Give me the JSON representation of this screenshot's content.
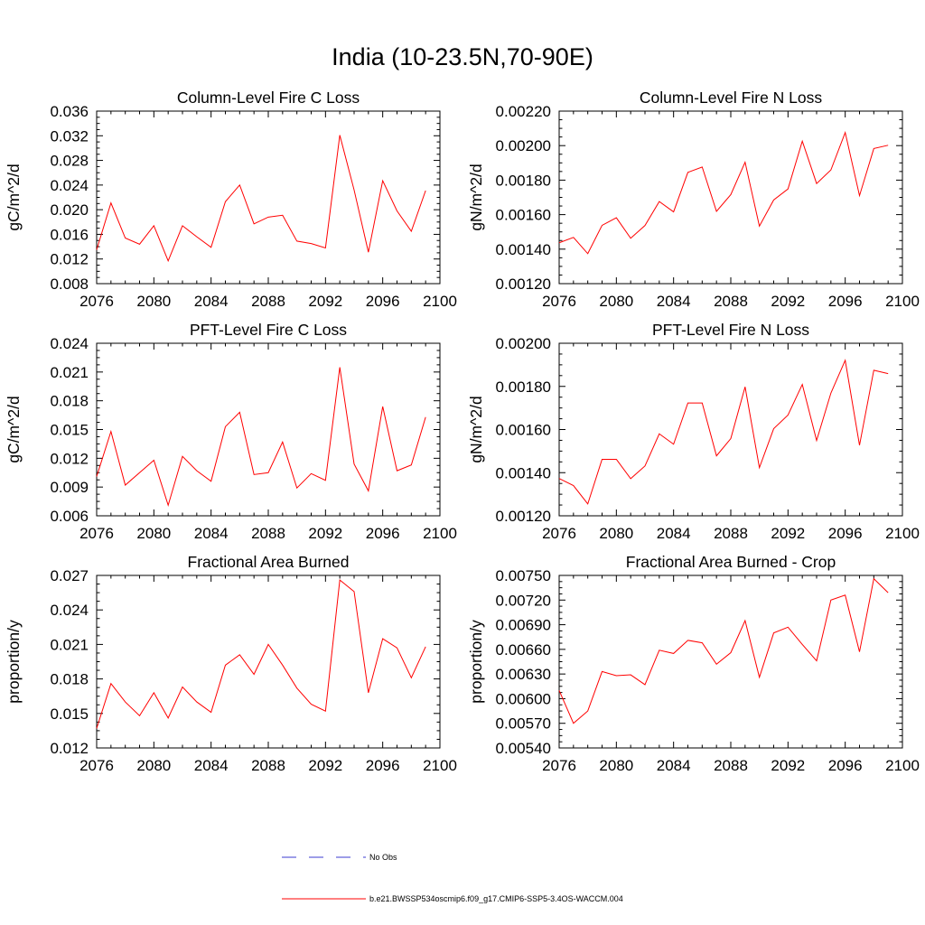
{
  "title": "India (10-23.5N,70-90E)",
  "legend": {
    "entries": [
      {
        "label": "No Obs",
        "color": "#3b3bd0",
        "style": "dashed"
      },
      {
        "label": "b.e21.BWSSP534oscmip6.f09_g17.CMIP6-SSP5-3.4OS-WACCM.004",
        "color": "#ff0000",
        "style": "solid"
      }
    ]
  },
  "chart_data": [
    {
      "type": "line",
      "title": "Column-Level Fire C Loss",
      "ylabel": "gC/m^2/d",
      "xlim": [
        2076,
        2100
      ],
      "ylim": [
        0.008,
        0.036
      ],
      "xticks": [
        "2076",
        "2080",
        "2084",
        "2088",
        "2092",
        "2096",
        "2100"
      ],
      "yticks": [
        "0.008",
        "0.012",
        "0.016",
        "0.020",
        "0.024",
        "0.028",
        "0.032",
        "0.036"
      ],
      "series": [
        {
          "color": "#ff0000",
          "x": [
            2076,
            2077,
            2078,
            2079,
            2080,
            2081,
            2082,
            2083,
            2084,
            2085,
            2086,
            2087,
            2088,
            2089,
            2090,
            2091,
            2092,
            2093,
            2094,
            2095,
            2096,
            2097,
            2098,
            2099
          ],
          "values": [
            0.0135,
            0.0211,
            0.0154,
            0.0144,
            0.0174,
            0.0117,
            0.0174,
            0.0156,
            0.0139,
            0.0213,
            0.024,
            0.0177,
            0.0188,
            0.0191,
            0.0149,
            0.0145,
            0.0138,
            0.0321,
            0.0232,
            0.0131,
            0.0247,
            0.0198,
            0.0165,
            0.0231
          ]
        }
      ]
    },
    {
      "type": "line",
      "title": "Column-Level Fire N Loss",
      "ylabel": "gN/m^2/d",
      "xlim": [
        2076,
        2100
      ],
      "ylim": [
        0.0012,
        0.0022
      ],
      "xticks": [
        "2076",
        "2080",
        "2084",
        "2088",
        "2092",
        "2096",
        "2100"
      ],
      "yticks": [
        "0.00120",
        "0.00140",
        "0.00160",
        "0.00180",
        "0.00200",
        "0.00220"
      ],
      "series": [
        {
          "color": "#ff0000",
          "x": [
            2076,
            2077,
            2078,
            2079,
            2080,
            2081,
            2082,
            2083,
            2084,
            2085,
            2086,
            2087,
            2088,
            2089,
            2090,
            2091,
            2092,
            2093,
            2094,
            2095,
            2096,
            2097,
            2098,
            2099
          ],
          "values": [
            0.001437,
            0.001468,
            0.001374,
            0.001538,
            0.001582,
            0.001463,
            0.001537,
            0.001676,
            0.001616,
            0.001845,
            0.001876,
            0.001619,
            0.001716,
            0.001904,
            0.001533,
            0.001685,
            0.001749,
            0.002026,
            0.00178,
            0.001859,
            0.002076,
            0.00171,
            0.001983,
            0.002002
          ]
        }
      ]
    },
    {
      "type": "line",
      "title": "PFT-Level Fire C Loss",
      "ylabel": "gC/m^2/d",
      "xlim": [
        2076,
        2100
      ],
      "ylim": [
        0.006,
        0.024
      ],
      "xticks": [
        "2076",
        "2080",
        "2084",
        "2088",
        "2092",
        "2096",
        "2100"
      ],
      "yticks": [
        "0.006",
        "0.009",
        "0.012",
        "0.015",
        "0.018",
        "0.021",
        "0.024"
      ],
      "series": [
        {
          "color": "#ff0000",
          "x": [
            2076,
            2077,
            2078,
            2079,
            2080,
            2081,
            2082,
            2083,
            2084,
            2085,
            2086,
            2087,
            2088,
            2089,
            2090,
            2091,
            2092,
            2093,
            2094,
            2095,
            2096,
            2097,
            2098,
            2099
          ],
          "values": [
            0.0101,
            0.0148,
            0.0092,
            0.0105,
            0.0118,
            0.0071,
            0.0122,
            0.0107,
            0.0096,
            0.0153,
            0.0168,
            0.0103,
            0.0105,
            0.0137,
            0.0089,
            0.0104,
            0.0097,
            0.0215,
            0.0114,
            0.0086,
            0.0174,
            0.0107,
            0.0113,
            0.0163
          ]
        }
      ]
    },
    {
      "type": "line",
      "title": "PFT-Level Fire N Loss",
      "ylabel": "gN/m^2/d",
      "xlim": [
        2076,
        2100
      ],
      "ylim": [
        0.0012,
        0.002
      ],
      "xticks": [
        "2076",
        "2080",
        "2084",
        "2088",
        "2092",
        "2096",
        "2100"
      ],
      "yticks": [
        "0.00120",
        "0.00140",
        "0.00160",
        "0.00180",
        "0.00200"
      ],
      "series": [
        {
          "color": "#ff0000",
          "x": [
            2076,
            2077,
            2078,
            2079,
            2080,
            2081,
            2082,
            2083,
            2084,
            2085,
            2086,
            2087,
            2088,
            2089,
            2090,
            2091,
            2092,
            2093,
            2094,
            2095,
            2096,
            2097,
            2098,
            2099
          ],
          "values": [
            0.001373,
            0.00134,
            0.001255,
            0.001462,
            0.001462,
            0.001372,
            0.001431,
            0.00158,
            0.001532,
            0.001723,
            0.001723,
            0.001478,
            0.001558,
            0.001798,
            0.001423,
            0.001604,
            0.001667,
            0.001809,
            0.001549,
            0.001769,
            0.001921,
            0.001527,
            0.001875,
            0.001859
          ]
        }
      ]
    },
    {
      "type": "line",
      "title": "Fractional Area Burned",
      "ylabel": "proportion/y",
      "xlim": [
        2076,
        2100
      ],
      "ylim": [
        0.012,
        0.027
      ],
      "xticks": [
        "2076",
        "2080",
        "2084",
        "2088",
        "2092",
        "2096",
        "2100"
      ],
      "yticks": [
        "0.012",
        "0.015",
        "0.018",
        "0.021",
        "0.024",
        "0.027"
      ],
      "series": [
        {
          "color": "#ff0000",
          "x": [
            2076,
            2077,
            2078,
            2079,
            2080,
            2081,
            2082,
            2083,
            2084,
            2085,
            2086,
            2087,
            2088,
            2089,
            2090,
            2091,
            2092,
            2093,
            2094,
            2095,
            2096,
            2097,
            2098,
            2099
          ],
          "values": [
            0.0137,
            0.0176,
            0.016,
            0.0148,
            0.0168,
            0.0146,
            0.0173,
            0.016,
            0.0151,
            0.0192,
            0.0201,
            0.0184,
            0.021,
            0.0192,
            0.0172,
            0.0158,
            0.0152,
            0.0266,
            0.0256,
            0.0168,
            0.0215,
            0.0207,
            0.0181,
            0.0208
          ]
        }
      ]
    },
    {
      "type": "line",
      "title": "Fractional Area Burned - Crop",
      "ylabel": "proportion/y",
      "xlim": [
        2076,
        2100
      ],
      "ylim": [
        0.0054,
        0.0075
      ],
      "xticks": [
        "2076",
        "2080",
        "2084",
        "2088",
        "2092",
        "2096",
        "2100"
      ],
      "yticks": [
        "0.00540",
        "0.00570",
        "0.00600",
        "0.00630",
        "0.00660",
        "0.00690",
        "0.00720",
        "0.00750"
      ],
      "series": [
        {
          "color": "#ff0000",
          "x": [
            2076,
            2077,
            2078,
            2079,
            2080,
            2081,
            2082,
            2083,
            2084,
            2085,
            2086,
            2087,
            2088,
            2089,
            2090,
            2091,
            2092,
            2093,
            2094,
            2095,
            2096,
            2097,
            2098,
            2099
          ],
          "values": [
            0.0061,
            0.0057,
            0.00585,
            0.00633,
            0.00628,
            0.00629,
            0.00617,
            0.00659,
            0.00655,
            0.00671,
            0.00668,
            0.00642,
            0.00656,
            0.00695,
            0.00626,
            0.0068,
            0.00687,
            0.00666,
            0.00646,
            0.0072,
            0.00726,
            0.00657,
            0.00746,
            0.00729
          ]
        }
      ]
    }
  ]
}
